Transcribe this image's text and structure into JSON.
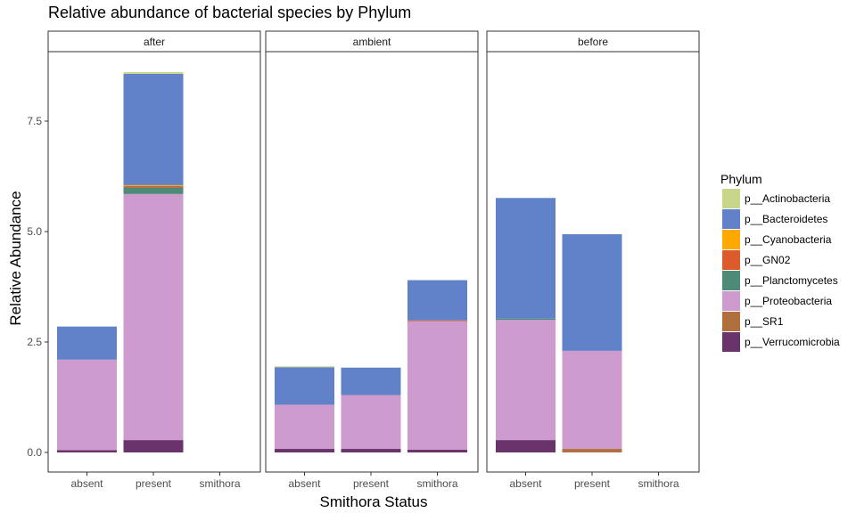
{
  "chart_data": {
    "type": "bar",
    "stacked": true,
    "title": "Relative abundance of bacterial species by Phylum",
    "xlabel": "Smithora Status",
    "ylabel": "Relative Abundance",
    "ylim": [
      0,
      9
    ],
    "yticks": [
      0.0,
      2.5,
      5.0,
      7.5
    ],
    "ytick_labels": [
      "0.0",
      "2.5",
      "5.0",
      "7.5"
    ],
    "categories": [
      "absent",
      "present",
      "smithora"
    ],
    "grid": false,
    "legend": {
      "title": "Phylum",
      "placement": "right",
      "entries": [
        {
          "name": "p__Actinobacteria",
          "color": "#c8d68c"
        },
        {
          "name": "p__Bacteroidetes",
          "color": "#6182c9"
        },
        {
          "name": "p__Cyanobacteria",
          "color": "#ffa800"
        },
        {
          "name": "p__GN02",
          "color": "#dd5a2a"
        },
        {
          "name": "p__Planctomycetes",
          "color": "#4f8a78"
        },
        {
          "name": "p__Proteobacteria",
          "color": "#cd9bce"
        },
        {
          "name": "p__SR1",
          "color": "#b0703d"
        },
        {
          "name": "p__Verrucomicrobia",
          "color": "#6a336b"
        }
      ]
    },
    "stack_order": [
      "p__Verrucomicrobia",
      "p__SR1",
      "p__Proteobacteria",
      "p__Planctomycetes",
      "p__GN02",
      "p__Cyanobacteria",
      "p__Bacteroidetes",
      "p__Actinobacteria"
    ],
    "facets": [
      {
        "label": "after",
        "bars": [
          {
            "category": "absent",
            "segments": {
              "p__Verrucomicrobia": 0.05,
              "p__Proteobacteria": 2.05,
              "p__Bacteroidetes": 0.75
            }
          },
          {
            "category": "present",
            "segments": {
              "p__Verrucomicrobia": 0.28,
              "p__Proteobacteria": 5.57,
              "p__Planctomycetes": 0.15,
              "p__GN02": 0.03,
              "p__Cyanobacteria": 0.02,
              "p__Bacteroidetes": 2.52,
              "p__Actinobacteria": 0.04
            }
          },
          {
            "category": "smithora",
            "segments": {}
          }
        ]
      },
      {
        "label": "ambient",
        "bars": [
          {
            "category": "absent",
            "segments": {
              "p__Verrucomicrobia": 0.08,
              "p__Proteobacteria": 1.0,
              "p__Bacteroidetes": 0.85,
              "p__Actinobacteria": 0.02
            }
          },
          {
            "category": "present",
            "segments": {
              "p__Verrucomicrobia": 0.08,
              "p__Proteobacteria": 1.22,
              "p__Bacteroidetes": 0.62
            }
          },
          {
            "category": "smithora",
            "segments": {
              "p__Verrucomicrobia": 0.06,
              "p__Proteobacteria": 2.91,
              "p__GN02": 0.02,
              "p__Bacteroidetes": 0.91
            }
          }
        ]
      },
      {
        "label": "before",
        "bars": [
          {
            "category": "absent",
            "segments": {
              "p__Verrucomicrobia": 0.28,
              "p__Proteobacteria": 2.72,
              "p__Planctomycetes": 0.03,
              "p__Bacteroidetes": 2.73
            }
          },
          {
            "category": "present",
            "segments": {
              "p__SR1": 0.08,
              "p__Proteobacteria": 2.22,
              "p__Bacteroidetes": 2.64
            }
          },
          {
            "category": "smithora",
            "segments": {}
          }
        ]
      }
    ]
  }
}
